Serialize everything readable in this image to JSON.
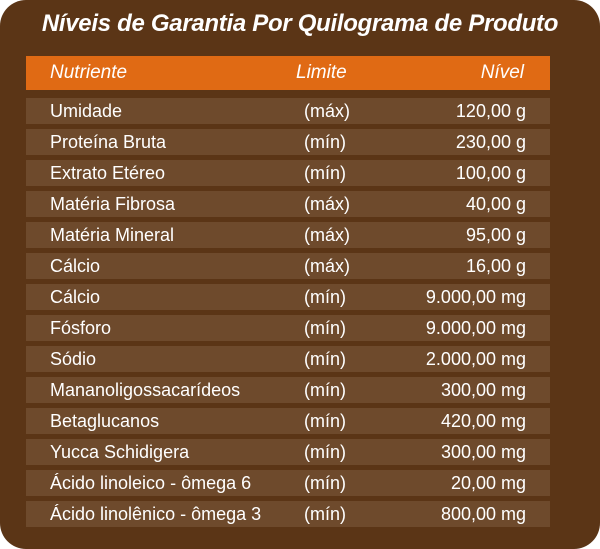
{
  "title": "Níveis de Garantia Por Quilograma de Produto",
  "header": {
    "nutriente": "Nutriente",
    "limite": "Limite",
    "nivel": "Nível"
  },
  "rows": [
    {
      "nutriente": "Umidade",
      "limite": "(máx)",
      "nivel": "120,00 g"
    },
    {
      "nutriente": "Proteína Bruta",
      "limite": "(mín)",
      "nivel": "230,00 g"
    },
    {
      "nutriente": "Extrato Etéreo",
      "limite": "(mín)",
      "nivel": "100,00 g"
    },
    {
      "nutriente": "Matéria Fibrosa",
      "limite": "(máx)",
      "nivel": "40,00 g"
    },
    {
      "nutriente": "Matéria Mineral",
      "limite": "(máx)",
      "nivel": "95,00 g"
    },
    {
      "nutriente": "Cálcio",
      "limite": "(máx)",
      "nivel": "16,00 g"
    },
    {
      "nutriente": "Cálcio",
      "limite": "(mín)",
      "nivel": "9.000,00 mg"
    },
    {
      "nutriente": "Fósforo",
      "limite": "(mín)",
      "nivel": "9.000,00 mg"
    },
    {
      "nutriente": "Sódio",
      "limite": "(mín)",
      "nivel": "2.000,00 mg"
    },
    {
      "nutriente": "Mananoligossacarídeos",
      "limite": "(mín)",
      "nivel": "300,00 mg"
    },
    {
      "nutriente": "Betaglucanos",
      "limite": "(mín)",
      "nivel": "420,00 mg"
    },
    {
      "nutriente": "Yucca Schidigera",
      "limite": "(mín)",
      "nivel": "300,00 mg"
    },
    {
      "nutriente": "Ácido linoleico - ômega 6",
      "limite": "(mín)",
      "nivel": "20,00 mg"
    },
    {
      "nutriente": "Ácido linolênico - ômega 3",
      "limite": "(mín)",
      "nivel": "800,00 mg"
    }
  ]
}
